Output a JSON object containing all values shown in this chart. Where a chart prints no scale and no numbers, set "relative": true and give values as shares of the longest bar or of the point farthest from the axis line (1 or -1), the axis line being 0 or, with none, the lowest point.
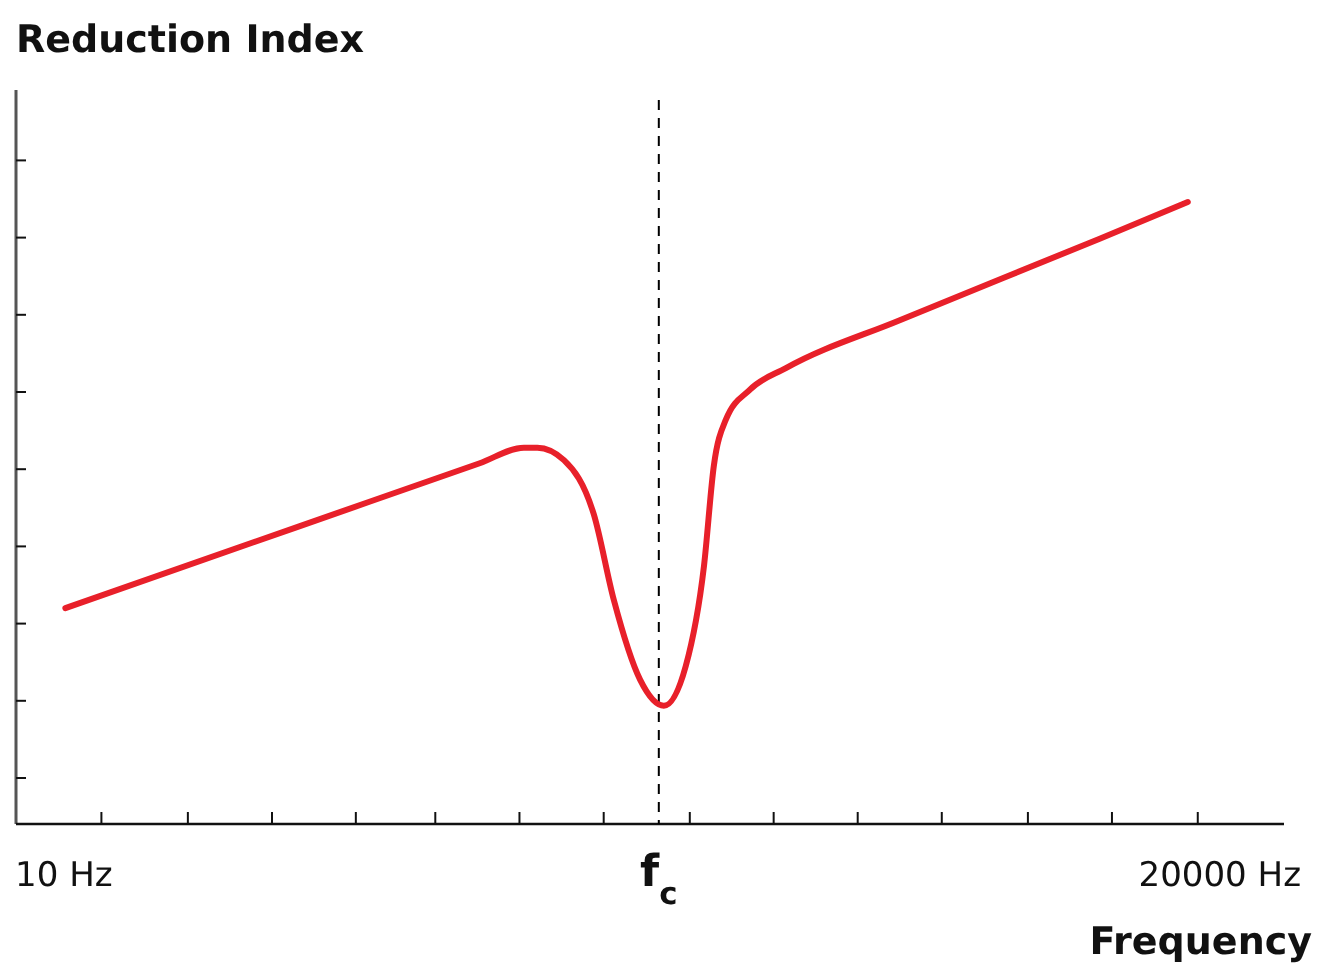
{
  "chart_data": {
    "type": "line",
    "title": "Reduction Index",
    "xlabel": "Frequency",
    "log": "x",
    "relative": true,
    "xlim": [
      7.3,
      30500
    ],
    "xticks": [
      {
        "value": 10,
        "label": "10 Hz"
      },
      {
        "value": 12.8,
        "label": null
      },
      {
        "value": 22.6,
        "label": null
      },
      {
        "value": 39.3,
        "label": null
      },
      {
        "value": 68.2,
        "label": null
      },
      {
        "value": 115,
        "label": null
      },
      {
        "value": 200,
        "label": null
      },
      {
        "value": 348,
        "label": null
      },
      {
        "value": 500,
        "label": "f$_{c}$"
      },
      {
        "value": 613,
        "label": null
      },
      {
        "value": 1064,
        "label": null
      },
      {
        "value": 1849,
        "label": null
      },
      {
        "value": 3214,
        "label": null
      },
      {
        "value": 5662,
        "label": null
      },
      {
        "value": 9840,
        "label": null
      },
      {
        "value": 17300,
        "label": null
      },
      {
        "value": 20000,
        "label": "20000 Hz"
      }
    ],
    "x": [
      10.1,
      47.2,
      154,
      206,
      225,
      268,
      326,
      372,
      442,
      517,
      597,
      673,
      718,
      777,
      909,
      1153,
      2438,
      9080,
      16200
    ],
    "series": [
      {
        "color": "#e8202a",
        "values": [
          0.347,
          0.479,
          0.58,
          0.605,
          0.605,
          0.585,
          0.498,
          0.36,
          0.232,
          0.19,
          0.254,
          0.415,
          0.576,
          0.65,
          0.698,
          0.733,
          0.81,
          0.941,
          1
        ]
      }
    ],
    "ref_lines": [
      {
        "axis": "x",
        "value": 500,
        "color": "#000000",
        "line_style": "dashed"
      }
    ],
    "line_style": "solid"
  }
}
